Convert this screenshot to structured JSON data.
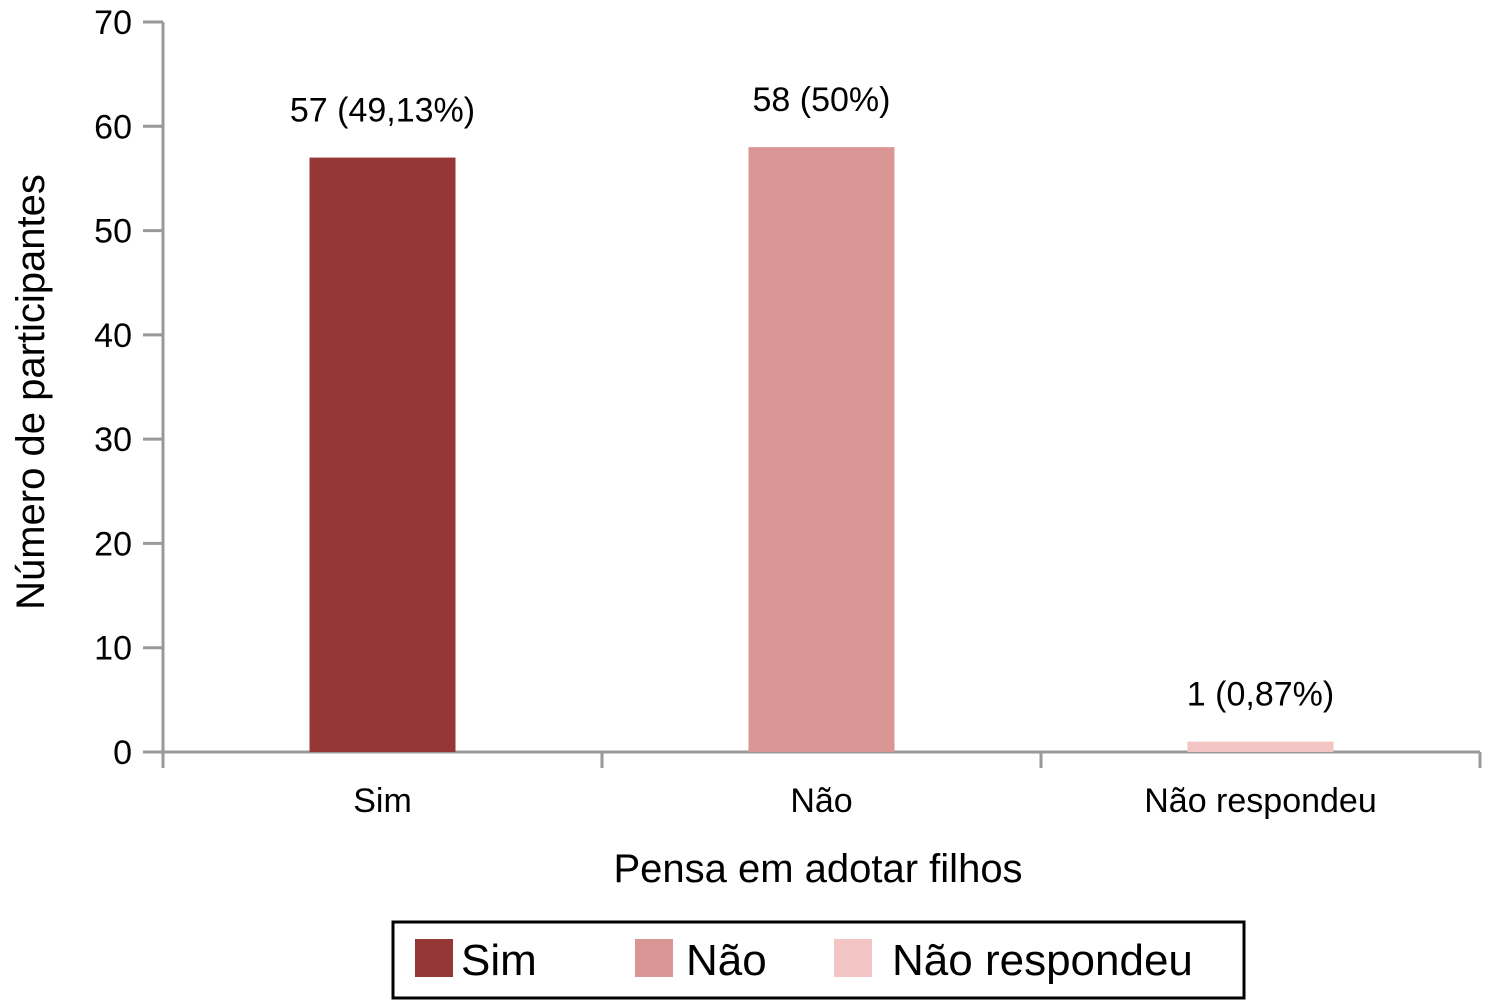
{
  "chart_data": {
    "type": "bar",
    "xlabel": "Pensa em adotar filhos",
    "ylabel": "Número de participantes",
    "ylim": [
      0,
      70
    ],
    "yticks": [
      0,
      10,
      20,
      30,
      40,
      50,
      60,
      70
    ],
    "categories": [
      "Sim",
      "Não",
      "Não respondeu"
    ],
    "values": [
      57,
      58,
      1
    ],
    "data_labels": [
      "57 (49,13%)",
      "58 (50%)",
      "1 (0,87%)"
    ],
    "colors": [
      "#943735",
      "#d99694",
      "#f2c4c3"
    ],
    "legend": {
      "position": "bottom",
      "entries": [
        "Sim",
        "Não",
        "Não respondeu"
      ]
    },
    "grid": false
  }
}
